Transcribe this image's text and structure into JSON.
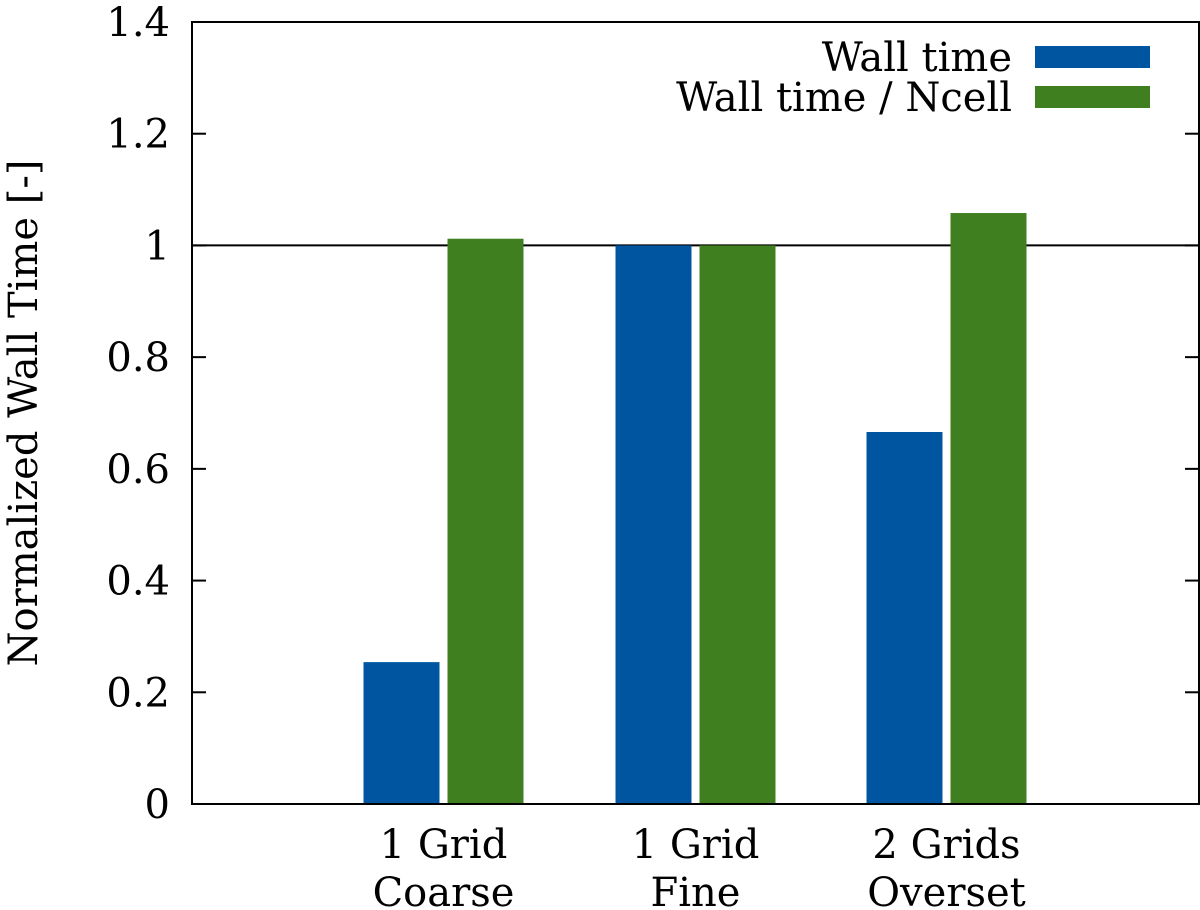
{
  "chart_data": {
    "type": "bar",
    "ylabel": "Normalized Wall Time [-]",
    "ylim": [
      0,
      1.4
    ],
    "yticks": [
      {
        "value": 0,
        "label": "0"
      },
      {
        "value": 0.2,
        "label": "0.2"
      },
      {
        "value": 0.4,
        "label": "0.4"
      },
      {
        "value": 0.6,
        "label": "0.6"
      },
      {
        "value": 0.8,
        "label": "0.8"
      },
      {
        "value": 1,
        "label": "1"
      },
      {
        "value": 1.2,
        "label": "1.2"
      },
      {
        "value": 1.4,
        "label": "1.4"
      }
    ],
    "categories": [
      {
        "line1": "1 Grid",
        "line2": "Coarse"
      },
      {
        "line1": "1 Grid",
        "line2": "Fine"
      },
      {
        "line1": "2 Grids",
        "line2": "Overset"
      }
    ],
    "series": [
      {
        "name": "Wall time",
        "color": "#0055a0",
        "values": [
          0.254,
          1.0,
          0.666
        ]
      },
      {
        "name": "Wall time / Ncell",
        "color": "#3f7f1f",
        "values": [
          1.012,
          1.0,
          1.058
        ]
      }
    ],
    "reference_line": 1,
    "legend_position": "top-right",
    "grid": false
  }
}
